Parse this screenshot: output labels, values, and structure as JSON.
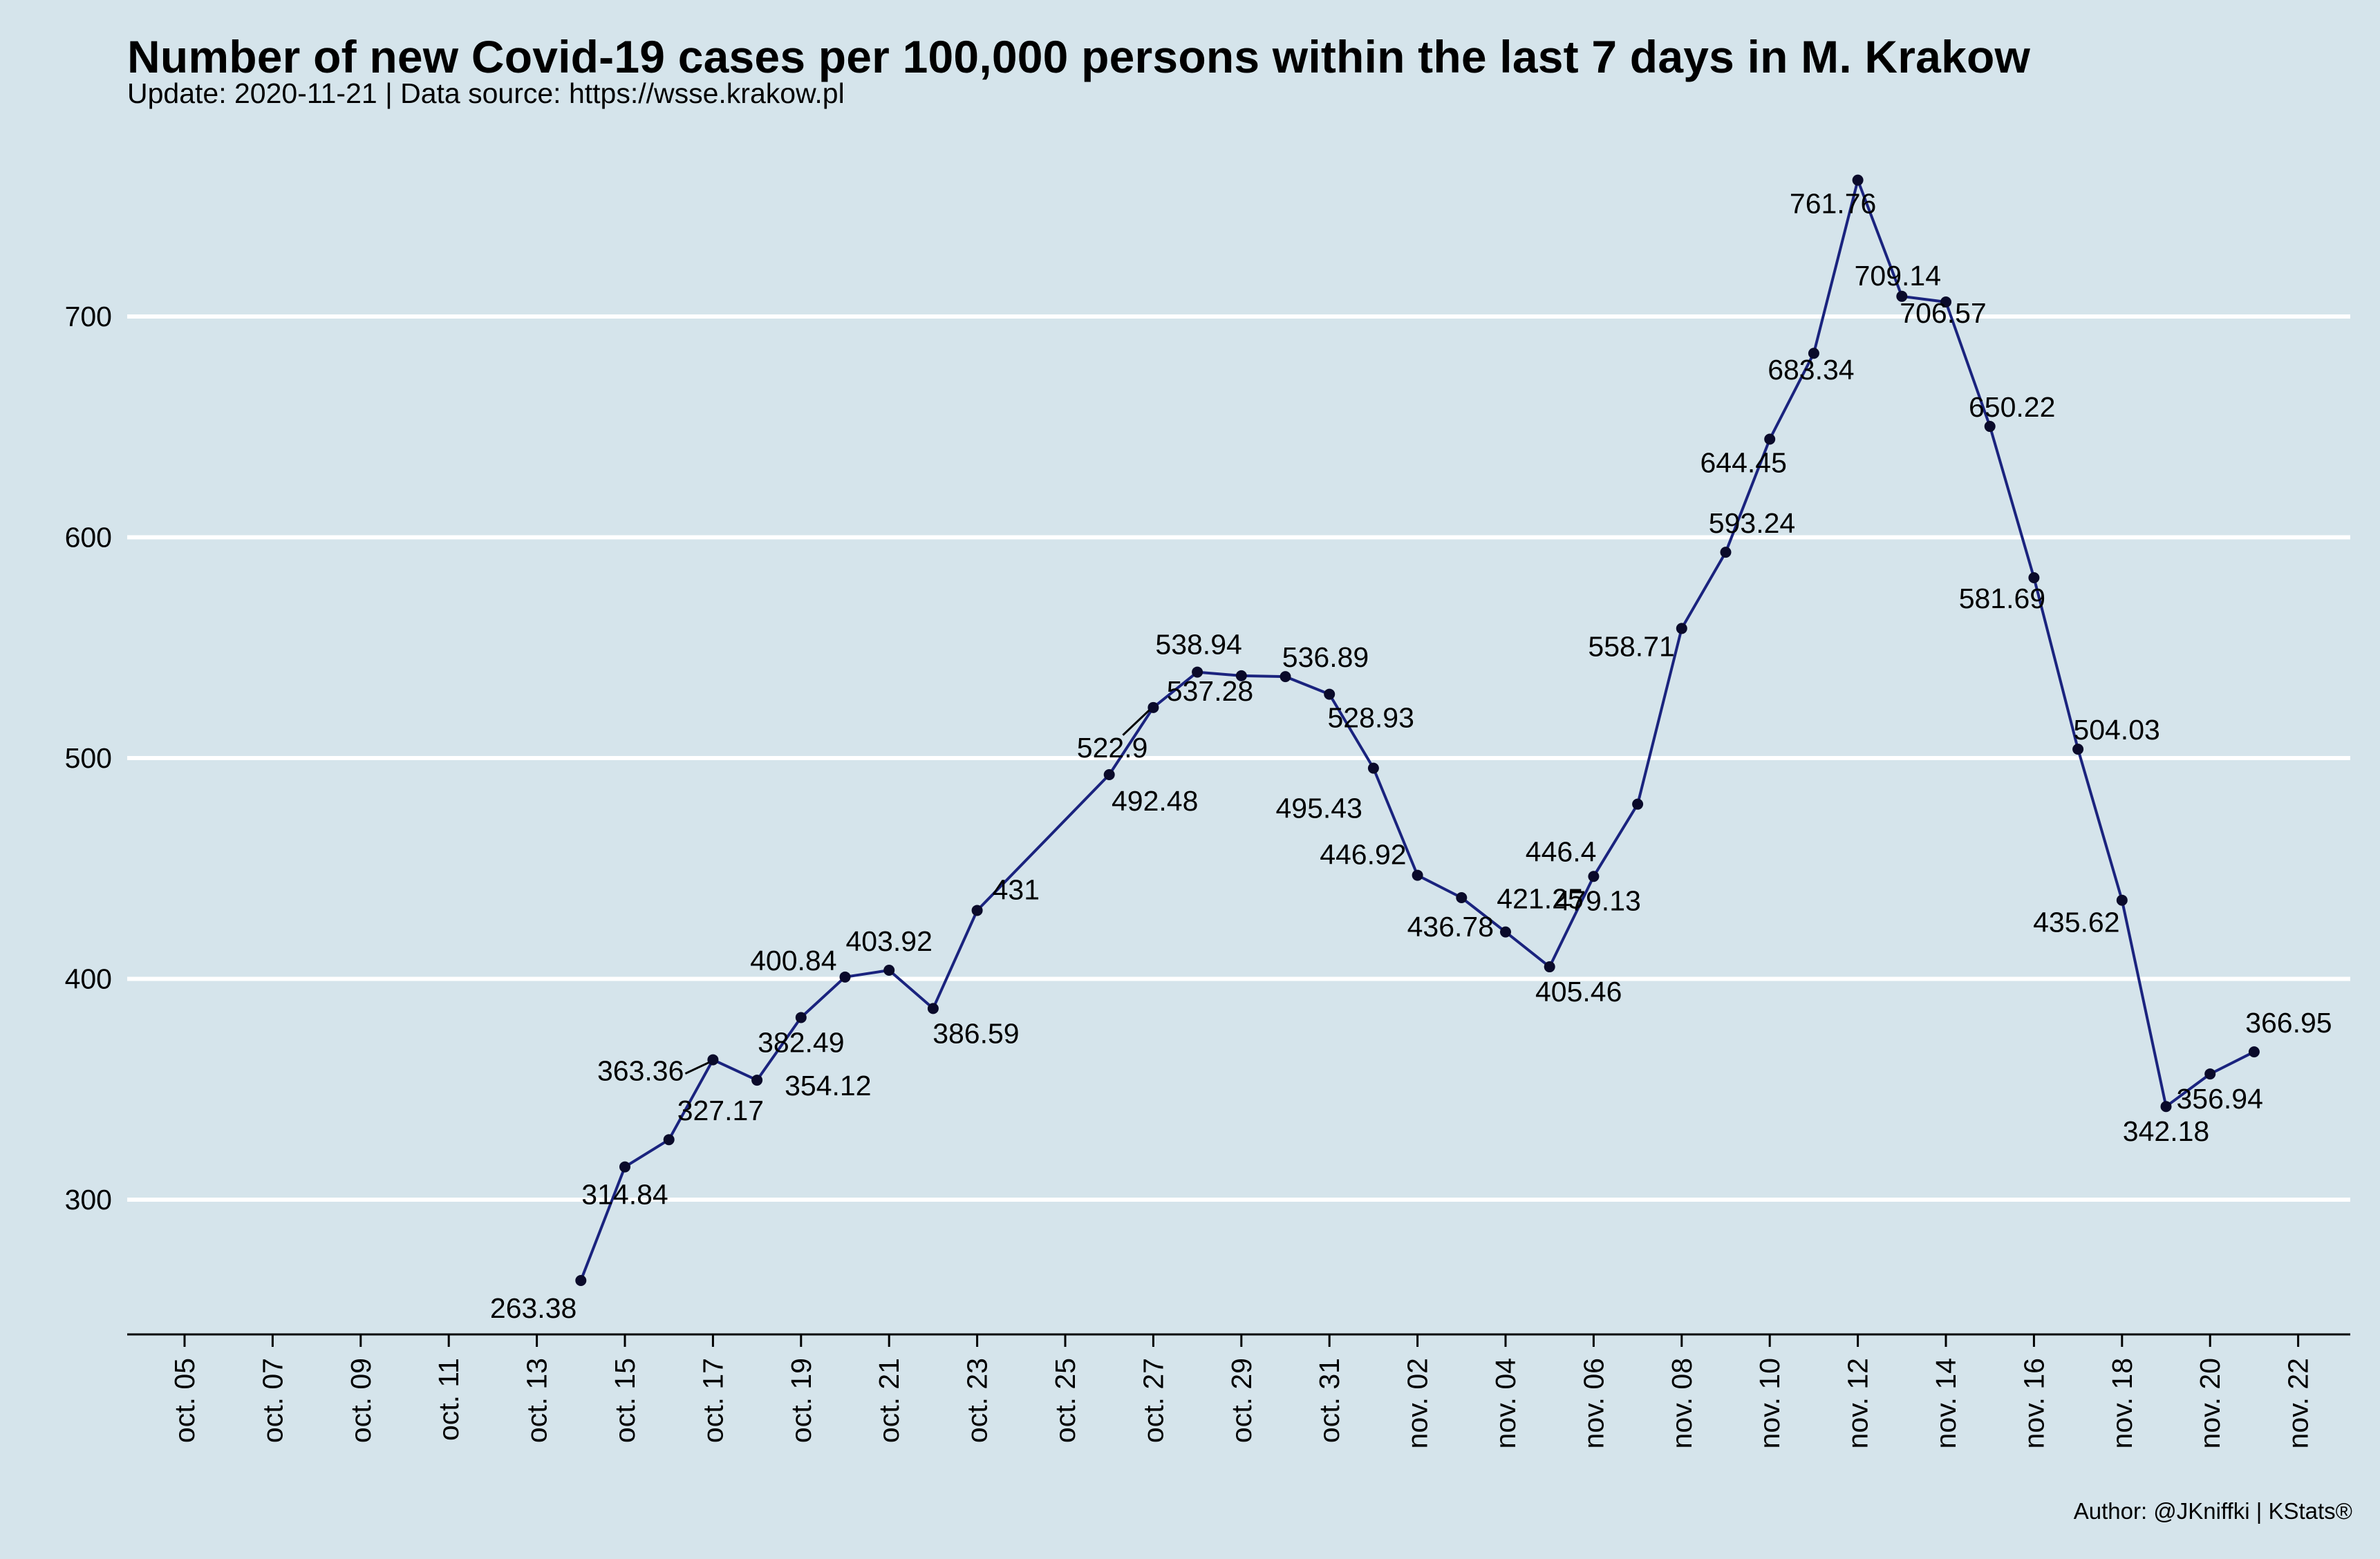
{
  "chart_data": {
    "type": "line",
    "title": "Number of new Covid-19 cases per 100,000 persons within the last 7 days in M. Krakow",
    "subtitle": "Update: 2020-11-21 | Data source: https://wsse.krakow.pl",
    "caption": "Author: @JKniffki | KStats®",
    "xlabel": "",
    "ylabel": "",
    "xlim": [
      "2020-10-04",
      "2020-11-22"
    ],
    "ylim": [
      240,
      775
    ],
    "y_ticks": [
      300,
      400,
      500,
      600,
      700
    ],
    "x_ticks": [
      "2020-10-05",
      "2020-10-07",
      "2020-10-09",
      "2020-10-11",
      "2020-10-13",
      "2020-10-15",
      "2020-10-17",
      "2020-10-19",
      "2020-10-21",
      "2020-10-23",
      "2020-10-25",
      "2020-10-27",
      "2020-10-29",
      "2020-10-31",
      "2020-11-02",
      "2020-11-04",
      "2020-11-06",
      "2020-11-08",
      "2020-11-10",
      "2020-11-12",
      "2020-11-14",
      "2020-11-16",
      "2020-11-18",
      "2020-11-20",
      "2020-11-22"
    ],
    "x_tick_labels": [
      "oct. 05",
      "oct. 07",
      "oct. 09",
      "oct. 11",
      "oct. 13",
      "oct. 15",
      "oct. 17",
      "oct. 19",
      "oct. 21",
      "oct. 23",
      "oct. 25",
      "oct. 27",
      "oct. 29",
      "oct. 31",
      "nov. 02",
      "nov. 04",
      "nov. 06",
      "nov. 08",
      "nov. 10",
      "nov. 12",
      "nov. 14",
      "nov. 16",
      "nov. 18",
      "nov. 20",
      "nov. 22"
    ],
    "grid": "horizontal major lines",
    "line_color": "#1a237e",
    "point_color": "#0a0a2a",
    "grid_color": "#ffffff",
    "background_color": "#d5e4eb",
    "points": [
      {
        "x": "2020-10-14",
        "y": 263.38,
        "label": "263.38"
      },
      {
        "x": "2020-10-15",
        "y": 314.84,
        "label": "314.84"
      },
      {
        "x": "2020-10-16",
        "y": 327.17,
        "label": "327.17"
      },
      {
        "x": "2020-10-17",
        "y": 363.36,
        "label": "363.36"
      },
      {
        "x": "2020-10-18",
        "y": 354.12,
        "label": "354.12"
      },
      {
        "x": "2020-10-19",
        "y": 382.49,
        "label": "382.49"
      },
      {
        "x": "2020-10-20",
        "y": 400.84,
        "label": "400.84"
      },
      {
        "x": "2020-10-21",
        "y": 403.92,
        "label": "403.92"
      },
      {
        "x": "2020-10-22",
        "y": 386.59,
        "label": "386.59"
      },
      {
        "x": "2020-10-23",
        "y": 431,
        "label": "431"
      },
      {
        "x": "2020-10-26",
        "y": 492.48,
        "label": "492.48"
      },
      {
        "x": "2020-10-27",
        "y": 522.9,
        "label": "522.9"
      },
      {
        "x": "2020-10-28",
        "y": 538.94,
        "label": "538.94"
      },
      {
        "x": "2020-10-29",
        "y": 537.28,
        "label": "537.28"
      },
      {
        "x": "2020-10-30",
        "y": 536.89,
        "label": "536.89"
      },
      {
        "x": "2020-10-31",
        "y": 528.93,
        "label": "528.93"
      },
      {
        "x": "2020-11-01",
        "y": 495.43,
        "label": "495.43"
      },
      {
        "x": "2020-11-02",
        "y": 446.92,
        "label": "446.92"
      },
      {
        "x": "2020-11-03",
        "y": 436.78,
        "label": "436.78"
      },
      {
        "x": "2020-11-04",
        "y": 421.25,
        "label": "421.25"
      },
      {
        "x": "2020-11-05",
        "y": 405.46,
        "label": "405.46"
      },
      {
        "x": "2020-11-06",
        "y": 446.4,
        "label": "446.4"
      },
      {
        "x": "2020-11-07",
        "y": 479.13,
        "label": "479.13"
      },
      {
        "x": "2020-11-08",
        "y": 558.71,
        "label": "558.71"
      },
      {
        "x": "2020-11-09",
        "y": 593.24,
        "label": "593.24"
      },
      {
        "x": "2020-11-10",
        "y": 644.45,
        "label": "644.45"
      },
      {
        "x": "2020-11-11",
        "y": 683.34,
        "label": "683.34"
      },
      {
        "x": "2020-11-12",
        "y": 761.76,
        "label": "761.76"
      },
      {
        "x": "2020-11-13",
        "y": 709.14,
        "label": "709.14"
      },
      {
        "x": "2020-11-14",
        "y": 706.57,
        "label": "706.57"
      },
      {
        "x": "2020-11-15",
        "y": 650.22,
        "label": "650.22"
      },
      {
        "x": "2020-11-16",
        "y": 581.69,
        "label": "581.69"
      },
      {
        "x": "2020-11-17",
        "y": 504.03,
        "label": "504.03"
      },
      {
        "x": "2020-11-18",
        "y": 435.62,
        "label": "435.62"
      },
      {
        "x": "2020-11-19",
        "y": 342.18,
        "label": "342.18"
      },
      {
        "x": "2020-11-20",
        "y": 356.94,
        "label": "356.94"
      },
      {
        "x": "2020-11-21",
        "y": 366.95,
        "label": "366.95"
      }
    ]
  }
}
